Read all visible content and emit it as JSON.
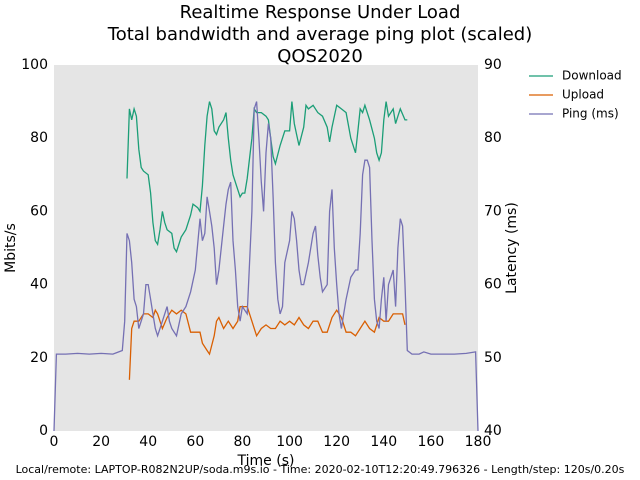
{
  "chart_data": {
    "type": "line",
    "title": [
      "Realtime Response Under Load",
      "Total bandwidth and average ping plot (scaled)",
      "QOS2020"
    ],
    "xlabel": "Time (s)",
    "ylabel": "Mbits/s",
    "y2label": "Latency (ms)",
    "footer": "Local/remote: LAPTOP-R082N2UP/soda.m9s.io - Time: 2020-02-10T12:20:49.796326 - Length/step: 120s/0.20s",
    "xlim": [
      0,
      180
    ],
    "xticks": [
      0,
      20,
      40,
      60,
      80,
      100,
      120,
      140,
      160,
      180
    ],
    "ylim": [
      0,
      100
    ],
    "yticks": [
      0,
      20,
      40,
      60,
      80,
      100
    ],
    "y2lim": [
      40,
      90
    ],
    "y2ticks": [
      40,
      50,
      60,
      70,
      80,
      90
    ],
    "grid": false,
    "legend": "upper right outside",
    "series": [
      {
        "name": "Download",
        "color": "#1b9e77",
        "x": [
          31,
          32,
          33,
          34,
          35,
          36,
          37,
          38,
          40,
          41,
          42,
          43,
          44,
          45,
          46,
          47,
          48,
          50,
          51,
          52,
          54,
          56,
          58,
          59,
          61,
          62,
          63,
          64,
          65,
          66,
          67,
          68,
          69,
          70,
          72,
          73,
          74,
          75,
          76,
          78,
          79,
          80,
          81,
          82,
          84,
          85,
          86,
          88,
          90,
          91,
          92,
          93,
          94,
          96,
          98,
          100,
          101,
          102,
          103,
          104,
          106,
          107,
          108,
          110,
          112,
          114,
          116,
          117,
          118,
          120,
          122,
          124,
          126,
          128,
          129,
          130,
          131,
          132,
          134,
          136,
          137,
          138,
          139,
          140,
          141,
          142,
          144,
          145,
          146,
          147,
          149,
          150
        ],
        "values": [
          69,
          88,
          85,
          88,
          86,
          77,
          72,
          71,
          70,
          65,
          57,
          52,
          51,
          55,
          60,
          57,
          55,
          54,
          50,
          49,
          53,
          55,
          59,
          62,
          61,
          60,
          67,
          78,
          86,
          90,
          88,
          82,
          81,
          83,
          85,
          87,
          80,
          74,
          70,
          66,
          64,
          65,
          65,
          69,
          80,
          88,
          87,
          87,
          86,
          85,
          80,
          75,
          73,
          78,
          82,
          82,
          90,
          84,
          81,
          78,
          83,
          89,
          88,
          89,
          87,
          86,
          83,
          79,
          83,
          89,
          88,
          87,
          80,
          76,
          82,
          88,
          87,
          89,
          85,
          80,
          76,
          74,
          76,
          85,
          90,
          86,
          88,
          84,
          86,
          88,
          85,
          85
        ]
      },
      {
        "name": "Upload",
        "color": "#d95f02",
        "x": [
          32,
          33,
          34,
          36,
          38,
          40,
          42,
          43,
          44,
          46,
          48,
          50,
          52,
          54,
          56,
          58,
          60,
          62,
          63,
          65,
          66,
          68,
          69,
          70,
          72,
          74,
          76,
          78,
          79,
          81,
          82,
          84,
          86,
          88,
          90,
          92,
          94,
          96,
          98,
          100,
          102,
          104,
          106,
          108,
          110,
          112,
          114,
          116,
          118,
          120,
          122,
          124,
          126,
          128,
          130,
          132,
          134,
          136,
          138,
          140,
          142,
          144,
          146,
          148,
          149
        ],
        "values": [
          14,
          28,
          30,
          30,
          32,
          32,
          31,
          33,
          32,
          28,
          31,
          33,
          32,
          33,
          32,
          27,
          27,
          27,
          24,
          22,
          21,
          26,
          30,
          31,
          28,
          30,
          28,
          30,
          34,
          34,
          34,
          30,
          26,
          28,
          29,
          28,
          28,
          30,
          29,
          30,
          29,
          31,
          29,
          28,
          30,
          30,
          27,
          27,
          31,
          33,
          31,
          27,
          27,
          26,
          28,
          30,
          28,
          27,
          31,
          30,
          30,
          32,
          32,
          32,
          29
        ]
      },
      {
        "name": "Ping (ms)",
        "color": "#7570b3",
        "axis": "y2",
        "x": [
          0,
          1,
          5,
          10,
          15,
          20,
          25,
          29,
          30,
          31,
          32,
          33,
          34,
          35,
          36,
          38,
          39,
          40,
          41,
          42,
          43,
          44,
          46,
          48,
          49,
          50,
          52,
          54,
          56,
          58,
          60,
          62,
          63,
          64,
          65,
          66,
          67,
          68,
          69,
          70,
          72,
          73,
          74,
          75,
          76,
          77,
          78,
          79,
          80,
          82,
          84,
          85,
          86,
          87,
          88,
          89,
          90,
          91,
          92,
          93,
          94,
          95,
          96,
          97,
          98,
          100,
          101,
          102,
          103,
          104,
          105,
          106,
          108,
          110,
          111,
          112,
          113,
          114,
          116,
          117,
          118,
          119,
          120,
          121,
          122,
          123,
          124,
          126,
          128,
          129,
          130,
          131,
          132,
          133,
          134,
          135,
          136,
          137,
          138,
          139,
          140,
          141,
          142,
          144,
          145,
          146,
          147,
          148,
          149,
          150,
          152,
          155,
          157,
          160,
          165,
          170,
          175,
          179,
          180
        ],
        "values": [
          40,
          50.5,
          50.5,
          50.6,
          50.5,
          50.6,
          50.5,
          51,
          55,
          67,
          66,
          63,
          58,
          57,
          54,
          56,
          60,
          60,
          58,
          56,
          54,
          53,
          55,
          57,
          55,
          54,
          53,
          56,
          57,
          59,
          62,
          69,
          66,
          67,
          72,
          70,
          68,
          65,
          60,
          62,
          68,
          71,
          73,
          74,
          66,
          62,
          57,
          55,
          57,
          56,
          70,
          84,
          85,
          80,
          74,
          70,
          78,
          82,
          80,
          72,
          63,
          58,
          56,
          57,
          63,
          66,
          70,
          69,
          66,
          62,
          60,
          60,
          63,
          67,
          68,
          64,
          61,
          59,
          60,
          70,
          73,
          65,
          60,
          56,
          54,
          56,
          58,
          61,
          62,
          62,
          67,
          75,
          77,
          77,
          76,
          66,
          58,
          55,
          54,
          58,
          61,
          55,
          60,
          62,
          57,
          65,
          69,
          68,
          60,
          51,
          50.5,
          50.5,
          50.8,
          50.5,
          50.5,
          50.5,
          50.6,
          50.8,
          40
        ]
      }
    ]
  }
}
